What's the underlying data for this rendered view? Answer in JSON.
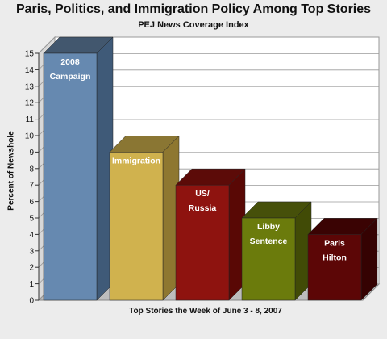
{
  "chart_data": {
    "type": "bar",
    "title": "Paris, Politics, and Immigration Policy Among Top Stories",
    "subtitle": "PEJ News Coverage Index",
    "xlabel": "Top Stories the Week of June 3 - 8, 2007",
    "ylabel": "Percent of Newshole",
    "ylim": [
      0,
      15
    ],
    "yticks": [
      "0",
      "1",
      "2",
      "3",
      "4",
      "5",
      "6",
      "7",
      "8",
      "9",
      "10",
      "11",
      "12",
      "13",
      "14",
      "15"
    ],
    "grid": true,
    "categories": [
      "2008 Campaign",
      "Immigration",
      "US/ Russia",
      "Libby Sentence",
      "Paris Hilton"
    ],
    "label_lines": [
      [
        "2008",
        "Campaign"
      ],
      [
        "Immigration"
      ],
      [
        "US/",
        "Russia"
      ],
      [
        "Libby",
        "Sentence"
      ],
      [
        "Paris",
        "Hilton"
      ]
    ],
    "values": [
      15,
      9,
      7,
      5,
      4
    ],
    "colors": [
      "#6689b0",
      "#d0b24e",
      "#8e130f",
      "#6b7b0c",
      "#5c0606"
    ],
    "side_colors": [
      "#3f5a78",
      "#8e7730",
      "#590805",
      "#414b06",
      "#350202"
    ],
    "top_colors": [
      "#42576e",
      "#8a7633",
      "#5c0b08",
      "#46500a",
      "#3a0303"
    ]
  }
}
